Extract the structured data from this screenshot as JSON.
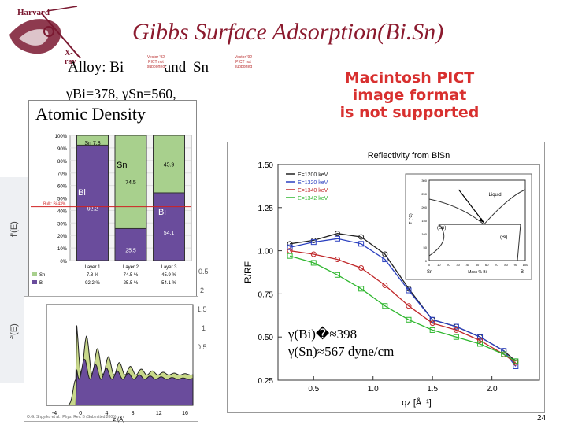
{
  "logo": {
    "top_text": "Harvard",
    "bottom_text": "X-ray"
  },
  "slide": {
    "title": "Gibbs Surface Adsorption(Bi.Sn)",
    "alloy_prefix": "Alloy: Bi",
    "alloy_and": "and",
    "alloy_sn": "Sn",
    "gamma_line": "γBi=378, γSn=560,",
    "tiny_notice": "Vector '92 PICT not supported",
    "pict_error": [
      "Macintosh PICT",
      "image format",
      "is not supported"
    ],
    "result_lines": [
      "γ(Bi)�≈398",
      "γ(Sn)≈567 dyne/cm"
    ],
    "footnote": "O.G. Shpyrko et al., Phys. Rev. B (Submitted 2005)",
    "page_number": "24"
  },
  "atomic_density": {
    "title": "Atomic Density",
    "y_ticks": [
      "100%",
      "90%",
      "80%",
      "70%",
      "60%",
      "50%",
      "40%",
      "30%",
      "20%",
      "10%",
      "0%"
    ],
    "bulk_label": "Bulk: Bi 43%",
    "layers": [
      {
        "name": "Layer 1",
        "sn": 7.8,
        "bi": 92.2,
        "sn_text": "Sn 7.8",
        "bi_text": "92.2",
        "sn_row": "7.8 %",
        "bi_row": "92.2 %"
      },
      {
        "name": "Layer 2",
        "sn": 74.5,
        "bi": 25.5,
        "sn_text": "74.5",
        "bi_text": "25.5",
        "sn_row": "74.5 %",
        "bi_row": "25.5 %"
      },
      {
        "name": "Layer 3",
        "sn": 45.9,
        "bi": 54.1,
        "sn_text": "45.9",
        "bi_text": "54.1",
        "sn_row": "45.9 %",
        "bi_row": "54.1 %"
      }
    ],
    "legend": {
      "sn": "Sn",
      "bi": "Bi"
    },
    "colors": {
      "sn": "#a8d08d",
      "bi": "#6a4c9c"
    }
  },
  "density_plot": {
    "x_ticks": [
      "-4",
      "0",
      "4",
      "8",
      "12",
      "16"
    ],
    "xlabel": "z (Å)"
  },
  "faint_background": {
    "labels": [
      "f'(E)",
      "f'(E)"
    ],
    "nums": [
      "0.5",
      "2",
      "1.5",
      "1",
      "0.5"
    ]
  },
  "chart_data": {
    "type": "line",
    "title": "Reflectivity from BiSn",
    "xlabel": "qz [Å⁻¹]",
    "ylabel": "R/RF",
    "xlim": [
      0.2,
      2.4
    ],
    "ylim": [
      0.25,
      1.5
    ],
    "x_ticks": [
      "0.5",
      "1.0",
      "1.5",
      "2.0"
    ],
    "y_ticks": [
      "1.50",
      "1.25",
      "1.00",
      "0.75",
      "0.50",
      "0.25"
    ],
    "legend_position": "top-left",
    "series": [
      {
        "name": "E=1200 keV",
        "color": "#222222",
        "x": [
          0.3,
          0.5,
          0.7,
          0.9,
          1.1,
          1.3,
          1.5,
          1.7,
          1.9,
          2.1,
          2.2
        ],
        "y": [
          1.04,
          1.06,
          1.1,
          1.08,
          0.98,
          0.78,
          0.6,
          0.56,
          0.5,
          0.42,
          0.36
        ]
      },
      {
        "name": "E=1320 keV",
        "color": "#2a3fbf",
        "x": [
          0.3,
          0.5,
          0.7,
          0.9,
          1.1,
          1.3,
          1.5,
          1.7,
          1.9,
          2.1,
          2.2
        ],
        "y": [
          1.02,
          1.05,
          1.07,
          1.04,
          0.95,
          0.77,
          0.6,
          0.56,
          0.5,
          0.42,
          0.33
        ]
      },
      {
        "name": "E=1340 keV",
        "color": "#c0282a",
        "x": [
          0.3,
          0.5,
          0.7,
          0.9,
          1.1,
          1.3,
          1.5,
          1.7,
          1.9,
          2.1,
          2.2
        ],
        "y": [
          1.0,
          0.98,
          0.95,
          0.9,
          0.8,
          0.68,
          0.58,
          0.54,
          0.48,
          0.4,
          0.35
        ]
      },
      {
        "name": "E=1342 keV",
        "color": "#2fb72f",
        "x": [
          0.3,
          0.5,
          0.7,
          0.9,
          1.1,
          1.3,
          1.5,
          1.7,
          1.9,
          2.1,
          2.2
        ],
        "y": [
          0.97,
          0.93,
          0.86,
          0.78,
          0.68,
          0.6,
          0.54,
          0.5,
          0.46,
          0.4,
          0.36
        ]
      }
    ]
  },
  "phase_diagram": {
    "liquid_label": "Liquid",
    "sn_label": "(Sn)",
    "bi_label": "(Bi)",
    "ylabel": "T (°C)",
    "xlabel": "Mass % Bi",
    "left_end": "Sn",
    "right_end": "Bi",
    "y_ticks": [
      "300",
      "250",
      "200",
      "150",
      "100",
      "50",
      "0"
    ],
    "x_ticks": [
      "0",
      "10",
      "20",
      "30",
      "40",
      "50",
      "60",
      "70",
      "80",
      "90",
      "100"
    ]
  }
}
